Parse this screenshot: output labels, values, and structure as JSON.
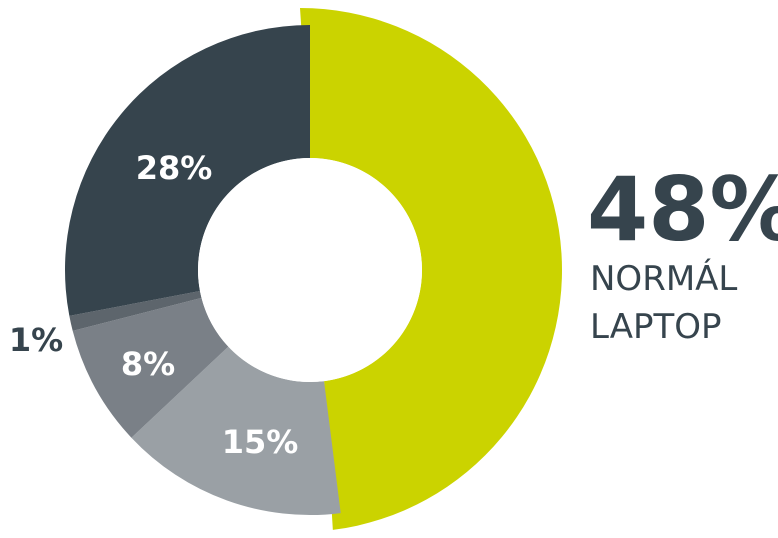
{
  "chart_data": {
    "type": "pie",
    "style": "donut",
    "slices": [
      {
        "value": 48,
        "label": "48%",
        "caption": [
          "NORMÁL",
          "LAPTOP"
        ],
        "color": "#cbd300"
      },
      {
        "value": 15,
        "label": "15%",
        "color": "#9aa0a5"
      },
      {
        "value": 8,
        "label": "8%",
        "color": "#7a8087"
      },
      {
        "value": 1,
        "label": "1%",
        "color": "#5d656c"
      },
      {
        "value": 28,
        "label": "28%",
        "color": "#36444d"
      }
    ],
    "legend": "none"
  },
  "colors": {
    "text_dark": "#36444d",
    "label_on_slice": "#ffffff",
    "center_hole": "#ffffff"
  }
}
